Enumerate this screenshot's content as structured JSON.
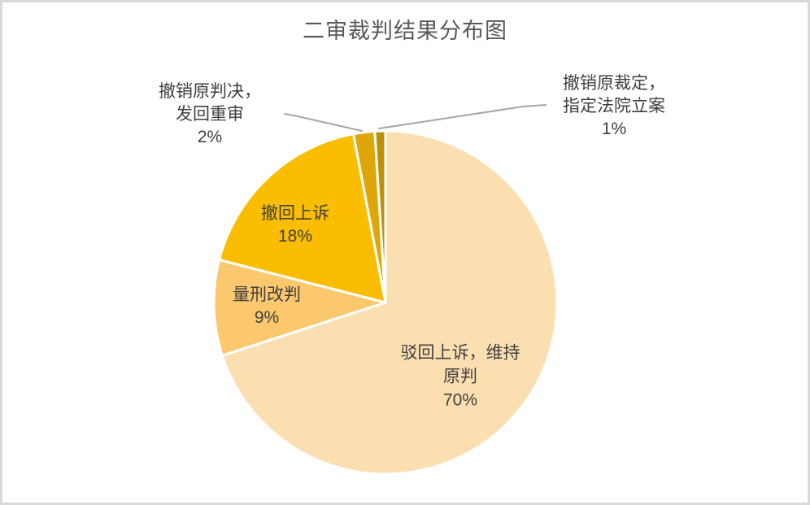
{
  "styles": {
    "frame_border_color": "#D9D9D9",
    "frame_background": "#FFFFFF",
    "title_color": "#595959",
    "label_text_color": "#404040",
    "leader_line_color": "#A6A6A6",
    "slice_border_color": "#FFFFFF"
  },
  "chart_data": {
    "type": "pie",
    "title": "二审裁判结果分布图",
    "start_angle_deg": 0,
    "direction": "clockwise",
    "legend": "none",
    "data_labels": "category name + percentage",
    "slices": [
      {
        "label": "驳回上诉，维持原判",
        "value": 70,
        "pct_label": "70%",
        "color": "#FCDFB1",
        "label_position": "inside",
        "label_lines": [
          "驳回上诉，维持",
          "原判",
          "70%"
        ]
      },
      {
        "label": "量刑改判",
        "value": 9,
        "pct_label": "9%",
        "color": "#FBC86D",
        "label_position": "inside",
        "label_lines": [
          "量刑改判",
          "9%"
        ]
      },
      {
        "label": "撤回上诉",
        "value": 18,
        "pct_label": "18%",
        "color": "#FBBD00",
        "label_position": "inside",
        "label_lines": [
          "撤回上诉",
          "18%"
        ]
      },
      {
        "label": "撤销原判决，发回重审",
        "value": 2,
        "pct_label": "2%",
        "color": "#DFA60A",
        "label_position": "outside",
        "label_lines": [
          "撤销原判决，",
          "发回重审",
          "2%"
        ]
      },
      {
        "label": "撤销原裁定，指定法院立案",
        "value": 1,
        "pct_label": "1%",
        "color": "#BF9004",
        "label_position": "outside",
        "label_lines": [
          "撤销原裁定，",
          "指定法院立案",
          "1%"
        ]
      }
    ]
  }
}
